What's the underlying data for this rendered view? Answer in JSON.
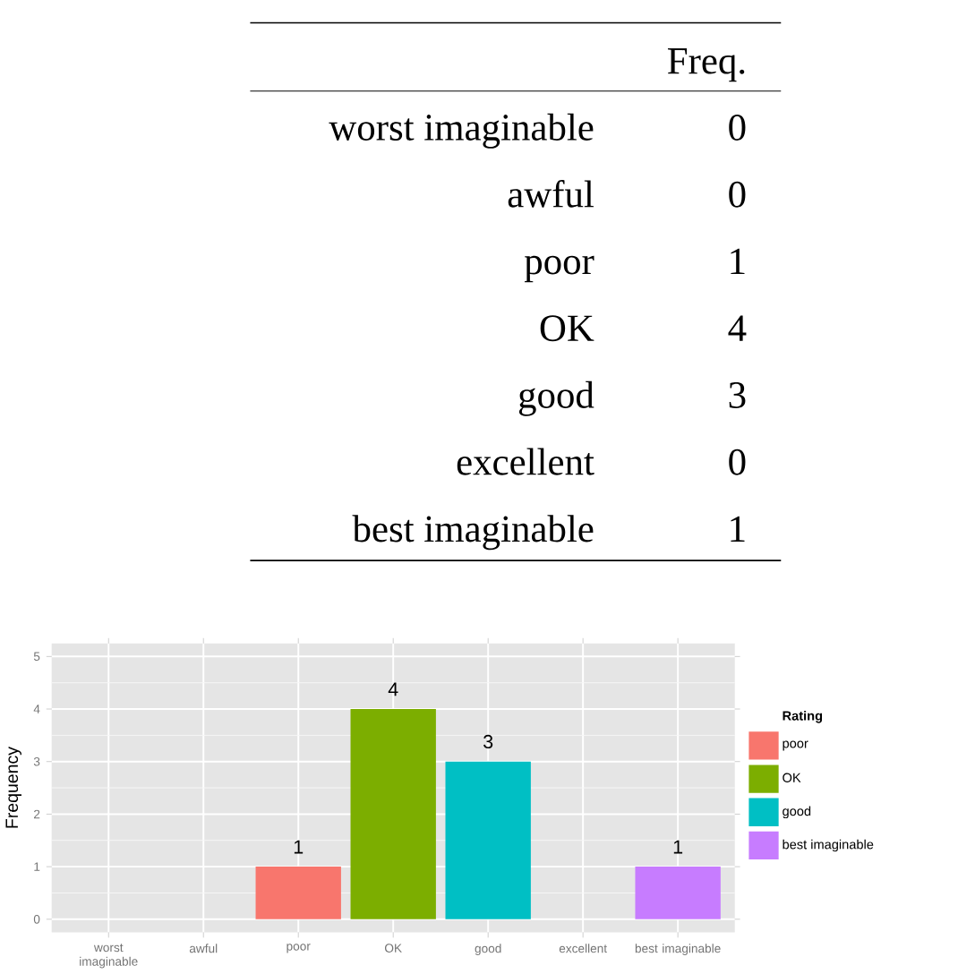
{
  "chart_data": {
    "type": "bar",
    "ylabel": "Frequency",
    "legend_title": "Rating",
    "annotations": [
      "Freq.",
      "0",
      "0",
      "1",
      "4",
      "3",
      "0",
      "1"
    ],
    "categories": [
      "worst imaginable",
      "awful",
      "poor",
      "OK",
      "good",
      "excellent",
      "best imaginable"
    ],
    "series": [
      {
        "name": "poor",
        "color": "#f8766d",
        "values": [
          null,
          null,
          1,
          null,
          null,
          null,
          null
        ]
      },
      {
        "name": "OK",
        "color": "#7cae00",
        "values": [
          null,
          null,
          null,
          4,
          null,
          null,
          null
        ]
      },
      {
        "name": "good",
        "color": "#00bfc4",
        "values": [
          null,
          null,
          null,
          null,
          3,
          null,
          null
        ]
      },
      {
        "name": "best imaginable",
        "color": "#c77cff",
        "values": [
          null,
          null,
          null,
          null,
          null,
          null,
          1
        ]
      }
    ],
    "ylim": [
      -0.25,
      5.25
    ],
    "yticks": [
      0,
      1,
      2,
      3,
      4,
      5
    ],
    "grid": true,
    "legend": "right",
    "data_labels": true
  }
}
